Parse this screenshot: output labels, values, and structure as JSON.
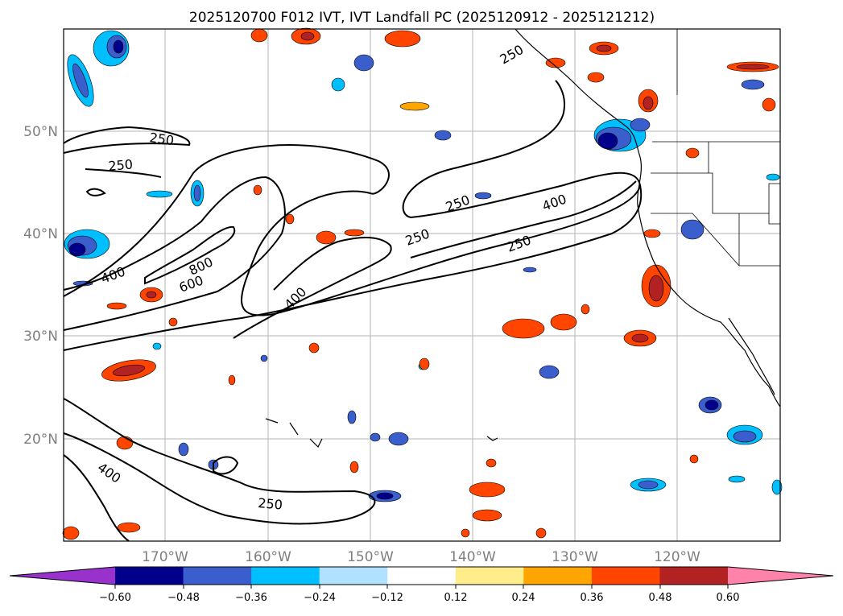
{
  "title": "2025120700 F012 IVT, IVT Landfall PC (2025120912 - 2025121212)",
  "lon_ticks": [
    "170°W",
    "160°W",
    "150°W",
    "140°W",
    "130°W",
    "120°W"
  ],
  "lat_ticks": [
    "50°N",
    "40°N",
    "30°N",
    "20°N"
  ],
  "colorbar": {
    "colors": [
      "#9932cc",
      "#00008b",
      "#3a5fcd",
      "#00bfff",
      "#b0e2ff",
      "#ffffff",
      "#ffec8b",
      "#ffa500",
      "#ff4500",
      "#b22222",
      "#ff82ab"
    ],
    "tick_labels": [
      "−0.60",
      "−0.48",
      "−0.36",
      "−0.24",
      "−0.12",
      "0.12",
      "0.24",
      "0.36",
      "0.48",
      "0.60"
    ]
  },
  "contour_labels": [
    "250",
    "250",
    "250",
    "400",
    "800",
    "600",
    "400",
    "250",
    "250",
    "400",
    "250",
    "400",
    "250"
  ]
}
